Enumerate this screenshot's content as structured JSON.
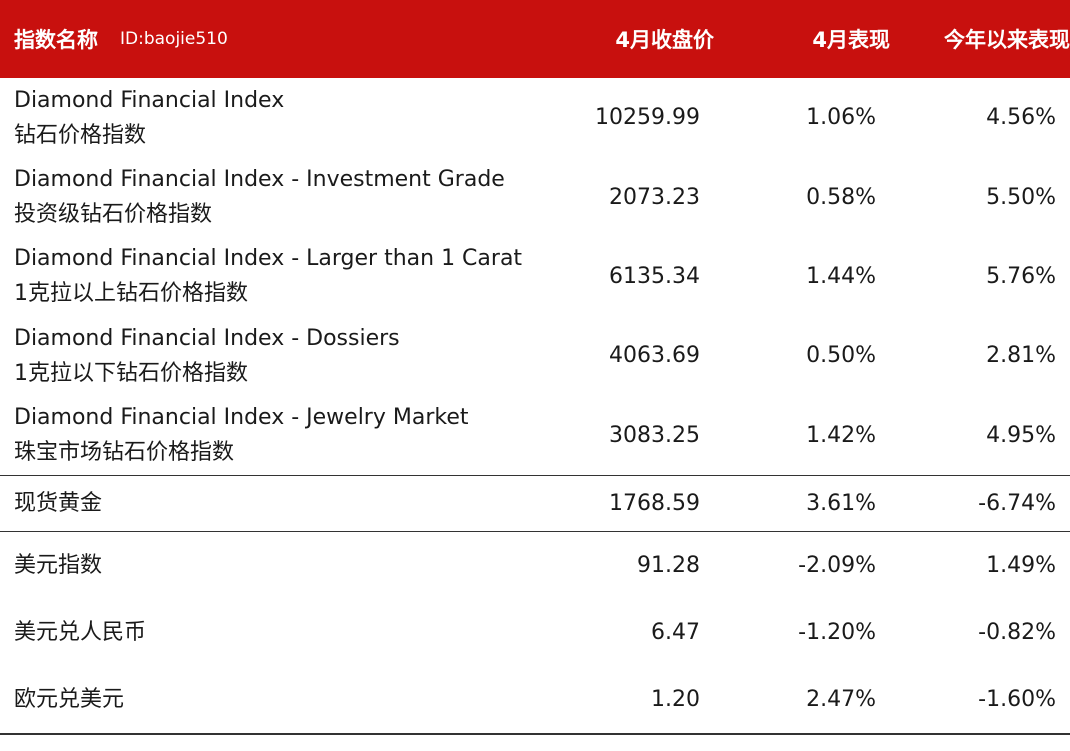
{
  "header": {
    "name_col": "指数名称",
    "id_text": "ID:baojie510",
    "col_close": "4月收盘价",
    "col_april": "4月表现",
    "col_ytd": "今年以来表现"
  },
  "rows": [
    {
      "name_en": "Diamond Financial Index",
      "name_cn": "钻石价格指数",
      "close": "10259.99",
      "april": "1.06%",
      "ytd": "4.56%"
    },
    {
      "name_en": "Diamond Financial Index - Investment Grade",
      "name_cn": "投资级钻石价格指数",
      "close": "2073.23",
      "april": "0.58%",
      "ytd": "5.50%"
    },
    {
      "name_en": "Diamond Financial Index - Larger than 1 Carat",
      "name_cn": "1克拉以上钻石价格指数",
      "close": "6135.34",
      "april": "1.44%",
      "ytd": "5.76%"
    },
    {
      "name_en": "Diamond Financial Index - Dossiers",
      "name_cn": "1克拉以下钻石价格指数",
      "close": "4063.69",
      "april": "0.50%",
      "ytd": "2.81%"
    },
    {
      "name_en": "Diamond Financial Index - Jewelry Market",
      "name_cn": "珠宝市场钻石价格指数",
      "close": "3083.25",
      "april": "1.42%",
      "ytd": "4.95%"
    }
  ],
  "gold": {
    "name": "现货黄金",
    "close": "1768.59",
    "april": "3.61%",
    "ytd": "-6.74%"
  },
  "fx": [
    {
      "name": "美元指数",
      "close": "91.28",
      "april": "-2.09%",
      "ytd": "1.49%"
    },
    {
      "name": "美元兑人民币",
      "close": "6.47",
      "april": "-1.20%",
      "ytd": "-0.82%"
    },
    {
      "name": "欧元兑美元",
      "close": "1.20",
      "april": "2.47%",
      "ytd": "-1.60%"
    }
  ],
  "colors": {
    "header_bg": "#c8100e",
    "header_text": "#ffffff",
    "rule": "#333333"
  }
}
